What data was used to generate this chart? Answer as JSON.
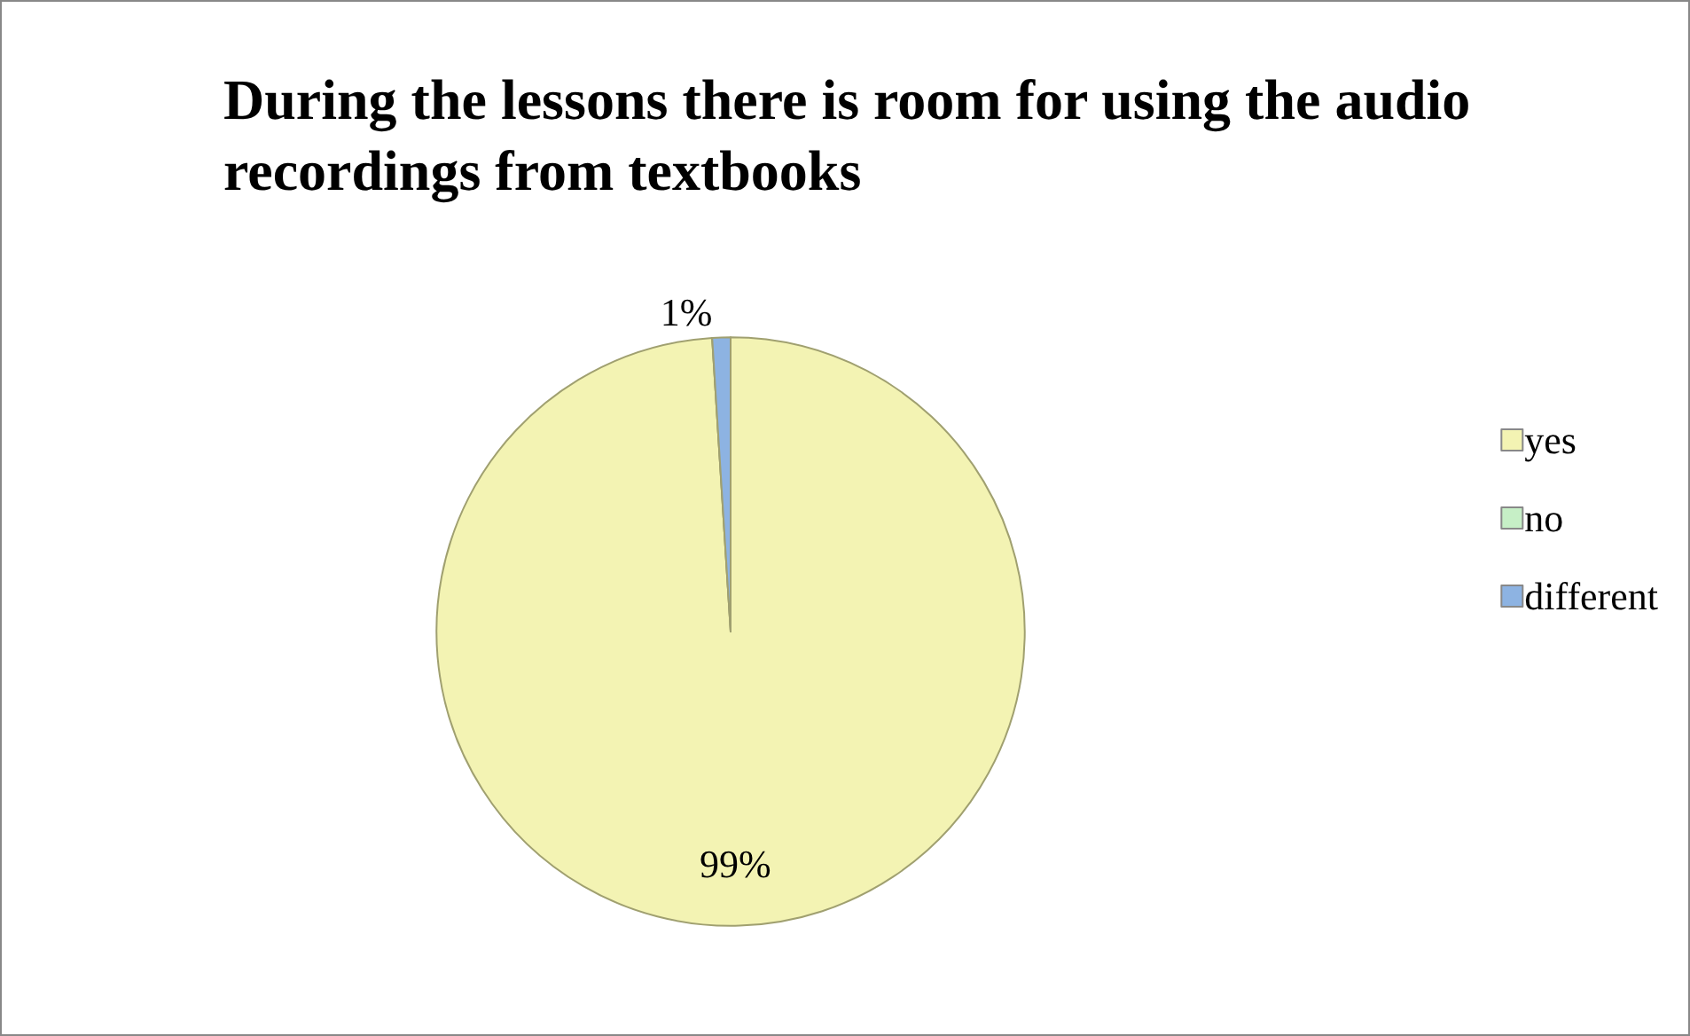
{
  "chart_data": {
    "type": "pie",
    "title": "During the lessons there is room for using the audio recordings from textbooks",
    "categories": [
      "yes",
      "no",
      "different"
    ],
    "values": [
      99,
      0,
      1
    ],
    "colors": [
      "#f3f3b3",
      "#c6efc6",
      "#8db3e2"
    ],
    "value_labels": [
      "99%",
      null,
      "1%"
    ],
    "legend": "right"
  }
}
